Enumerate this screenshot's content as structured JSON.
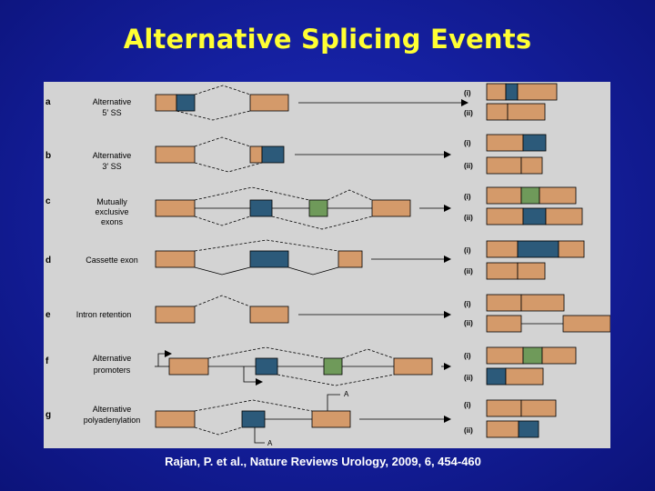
{
  "title": "Alternative Splicing Events",
  "citation": "Rajan, P. et al., Nature Reviews Urology, 2009, 6, 454-460",
  "colors": {
    "exon": "#d49a6a",
    "blue_exon": "#2c5a7a",
    "green_exon": "#6f9a5a"
  },
  "rows": [
    {
      "letter": "a",
      "label_lines": [
        "Alternative",
        "5′ SS"
      ],
      "outcomes": [
        "(i)",
        "(ii)"
      ]
    },
    {
      "letter": "b",
      "label_lines": [
        "Alternative",
        "3′ SS"
      ],
      "outcomes": [
        "(i)",
        "(ii)"
      ]
    },
    {
      "letter": "c",
      "label_lines": [
        "Mutually",
        "exclusive",
        "exons"
      ],
      "outcomes": [
        "(i)",
        "(ii)"
      ]
    },
    {
      "letter": "d",
      "label_lines": [
        "Cassette exon"
      ],
      "outcomes": [
        "(i)",
        "(ii)"
      ]
    },
    {
      "letter": "e",
      "label_lines": [
        "Intron retention"
      ],
      "outcomes": [
        "(i)",
        "(ii)"
      ]
    },
    {
      "letter": "f",
      "label_lines": [
        "Alternative",
        "promoters"
      ],
      "outcomes": [
        "(i)",
        "(ii)"
      ]
    },
    {
      "letter": "g",
      "label_lines": [
        "Alternative",
        "polyadenylation"
      ],
      "outcomes": [
        "(i)",
        "(ii)"
      ],
      "polya_marks": [
        "A",
        "A"
      ]
    }
  ]
}
